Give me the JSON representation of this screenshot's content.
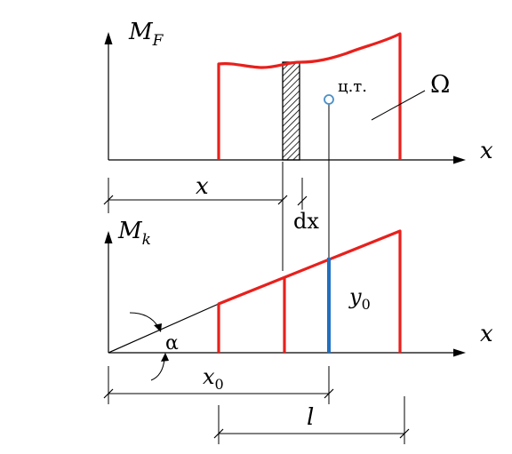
{
  "colors": {
    "axis": "#000000",
    "moment_line": "#e8201c",
    "centroid_ordinate": "#1f6fc0",
    "centroid_marker": "#4a90c8"
  },
  "top": {
    "y_axis_label_main": "M",
    "y_axis_label_sub": "F",
    "x_axis_label": "x",
    "centroid_label": "ц.т.",
    "area_label": "Ω",
    "distance_label": "x",
    "strip_label": "dx"
  },
  "bottom": {
    "y_axis_label_main": "M",
    "y_axis_label_sub": "k",
    "x_axis_label": "x",
    "angle_label": "α",
    "ordinate_label_main": "y",
    "ordinate_label_sub": "0",
    "centroid_distance_main": "x",
    "centroid_distance_sub": "0",
    "length_label": "l"
  }
}
